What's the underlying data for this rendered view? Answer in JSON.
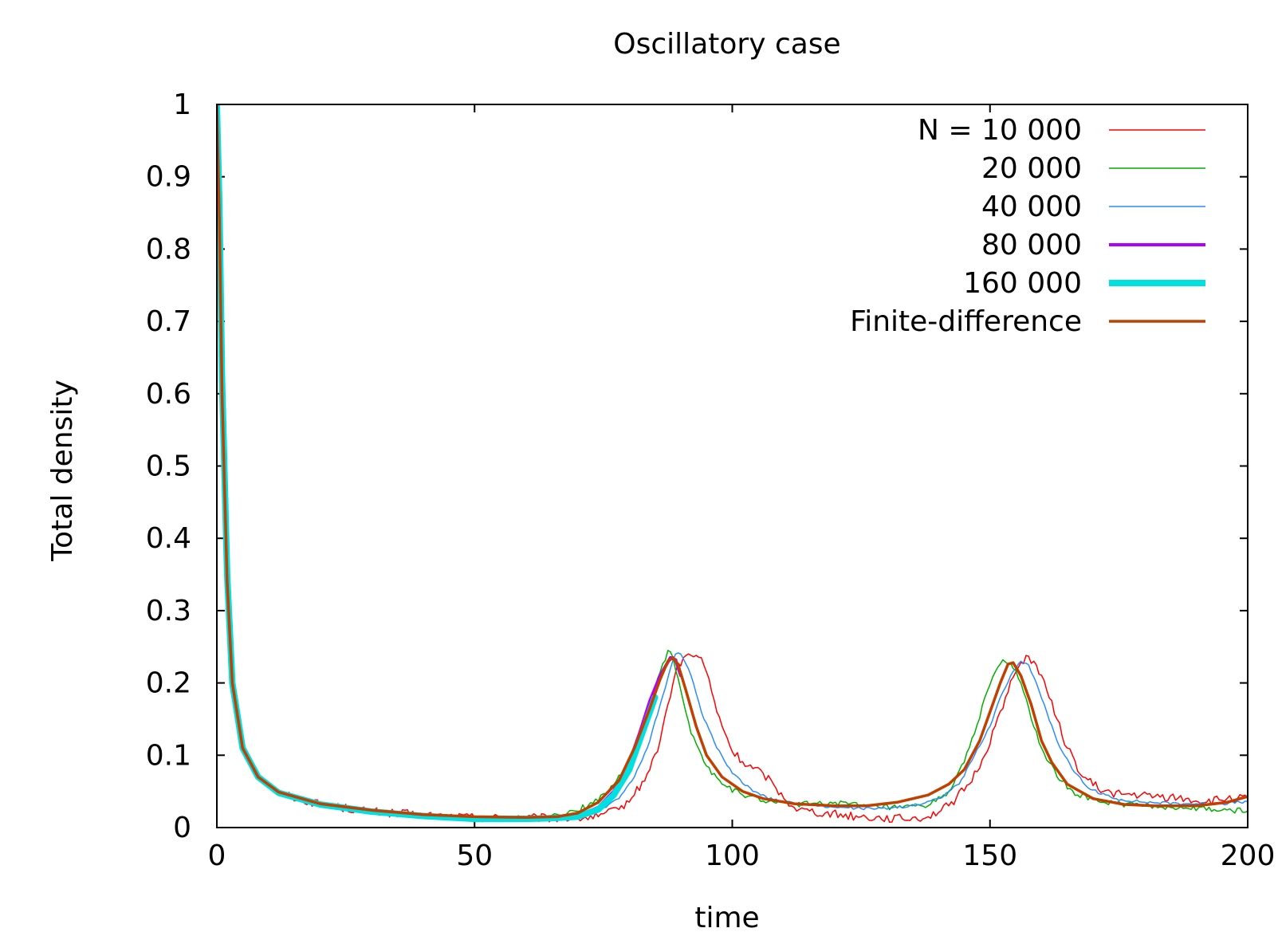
{
  "chart_data": {
    "type": "line",
    "title": "Oscillatory case",
    "xlabel": "time",
    "ylabel": "Total density",
    "xlim": [
      0,
      200
    ],
    "ylim": [
      0,
      1
    ],
    "xticks": [
      "0",
      "50",
      "100",
      "150",
      "200"
    ],
    "yticks": [
      "0",
      "0.1",
      "0.2",
      "0.3",
      "0.4",
      "0.5",
      "0.6",
      "0.7",
      "0.8",
      "0.9",
      "1"
    ],
    "grid": false,
    "legend_position": "top-right",
    "series": [
      {
        "name": "N = 10 000",
        "color": "#ff0000",
        "width": 1.5,
        "noise": 0.006,
        "points": [
          [
            0,
            1.0
          ],
          [
            0.5,
            0.85
          ],
          [
            1,
            0.62
          ],
          [
            2,
            0.35
          ],
          [
            3,
            0.2
          ],
          [
            5,
            0.11
          ],
          [
            8,
            0.07
          ],
          [
            12,
            0.048
          ],
          [
            20,
            0.032
          ],
          [
            30,
            0.022
          ],
          [
            40,
            0.017
          ],
          [
            50,
            0.014
          ],
          [
            60,
            0.013
          ],
          [
            65,
            0.013
          ],
          [
            70,
            0.013
          ],
          [
            74,
            0.015
          ],
          [
            78,
            0.025
          ],
          [
            81,
            0.045
          ],
          [
            84,
            0.08
          ],
          [
            86,
            0.12
          ],
          [
            87.5,
            0.17
          ],
          [
            89,
            0.215
          ],
          [
            90.5,
            0.235
          ],
          [
            92,
            0.238
          ],
          [
            94,
            0.235
          ],
          [
            95,
            0.215
          ],
          [
            97,
            0.16
          ],
          [
            100,
            0.105
          ],
          [
            103,
            0.085
          ],
          [
            106,
            0.075
          ],
          [
            108,
            0.06
          ],
          [
            110,
            0.04
          ],
          [
            113,
            0.025
          ],
          [
            118,
            0.02
          ],
          [
            125,
            0.015
          ],
          [
            133,
            0.012
          ],
          [
            138,
            0.015
          ],
          [
            142,
            0.03
          ],
          [
            146,
            0.06
          ],
          [
            149,
            0.1
          ],
          [
            151,
            0.14
          ],
          [
            153,
            0.18
          ],
          [
            155,
            0.215
          ],
          [
            157,
            0.238
          ],
          [
            159,
            0.225
          ],
          [
            161,
            0.19
          ],
          [
            163,
            0.15
          ],
          [
            165,
            0.11
          ],
          [
            168,
            0.07
          ],
          [
            172,
            0.05
          ],
          [
            176,
            0.046
          ],
          [
            182,
            0.043
          ],
          [
            188,
            0.04
          ],
          [
            192,
            0.035
          ],
          [
            196,
            0.04
          ],
          [
            200,
            0.04
          ]
        ]
      },
      {
        "name": "20 000",
        "color": "#00b000",
        "width": 1.5,
        "noise": 0.004,
        "points": [
          [
            0,
            1.0
          ],
          [
            0.5,
            0.86
          ],
          [
            1,
            0.62
          ],
          [
            2,
            0.35
          ],
          [
            3,
            0.2
          ],
          [
            5,
            0.11
          ],
          [
            8,
            0.07
          ],
          [
            12,
            0.048
          ],
          [
            20,
            0.032
          ],
          [
            30,
            0.022
          ],
          [
            40,
            0.016
          ],
          [
            50,
            0.013
          ],
          [
            60,
            0.013
          ],
          [
            64,
            0.014
          ],
          [
            68,
            0.02
          ],
          [
            72,
            0.03
          ],
          [
            76,
            0.05
          ],
          [
            79,
            0.08
          ],
          [
            82,
            0.12
          ],
          [
            84,
            0.17
          ],
          [
            86,
            0.215
          ],
          [
            87.5,
            0.245
          ],
          [
            88.5,
            0.235
          ],
          [
            90,
            0.19
          ],
          [
            92,
            0.13
          ],
          [
            95,
            0.085
          ],
          [
            98,
            0.06
          ],
          [
            102,
            0.045
          ],
          [
            107,
            0.036
          ],
          [
            112,
            0.032
          ],
          [
            120,
            0.035
          ],
          [
            125,
            0.03
          ],
          [
            132,
            0.027
          ],
          [
            138,
            0.03
          ],
          [
            142,
            0.05
          ],
          [
            145,
            0.09
          ],
          [
            147,
            0.13
          ],
          [
            149,
            0.18
          ],
          [
            151,
            0.215
          ],
          [
            152.5,
            0.232
          ],
          [
            154,
            0.228
          ],
          [
            156,
            0.2
          ],
          [
            158,
            0.15
          ],
          [
            160,
            0.11
          ],
          [
            163,
            0.07
          ],
          [
            167,
            0.045
          ],
          [
            172,
            0.035
          ],
          [
            180,
            0.03
          ],
          [
            188,
            0.027
          ],
          [
            195,
            0.024
          ],
          [
            200,
            0.023
          ]
        ]
      },
      {
        "name": "40 000",
        "color": "#2a8cff",
        "width": 1.5,
        "noise": 0.002,
        "points": [
          [
            0,
            1.0
          ],
          [
            0.5,
            0.86
          ],
          [
            1,
            0.62
          ],
          [
            2,
            0.35
          ],
          [
            3,
            0.2
          ],
          [
            5,
            0.11
          ],
          [
            8,
            0.07
          ],
          [
            12,
            0.048
          ],
          [
            20,
            0.032
          ],
          [
            30,
            0.022
          ],
          [
            40,
            0.016
          ],
          [
            50,
            0.013
          ],
          [
            60,
            0.013
          ],
          [
            65,
            0.013
          ],
          [
            70,
            0.015
          ],
          [
            74,
            0.022
          ],
          [
            78,
            0.04
          ],
          [
            81,
            0.07
          ],
          [
            84,
            0.12
          ],
          [
            86,
            0.17
          ],
          [
            88,
            0.22
          ],
          [
            89,
            0.24
          ],
          [
            90,
            0.24
          ],
          [
            92,
            0.21
          ],
          [
            94,
            0.16
          ],
          [
            97,
            0.11
          ],
          [
            100,
            0.075
          ],
          [
            104,
            0.05
          ],
          [
            108,
            0.038
          ],
          [
            114,
            0.032
          ],
          [
            120,
            0.028
          ],
          [
            128,
            0.026
          ],
          [
            135,
            0.03
          ],
          [
            140,
            0.04
          ],
          [
            144,
            0.06
          ],
          [
            147,
            0.1
          ],
          [
            150,
            0.14
          ],
          [
            152,
            0.18
          ],
          [
            154,
            0.21
          ],
          [
            156,
            0.23
          ],
          [
            157.5,
            0.225
          ],
          [
            159,
            0.2
          ],
          [
            161,
            0.16
          ],
          [
            163,
            0.12
          ],
          [
            166,
            0.08
          ],
          [
            169,
            0.055
          ],
          [
            174,
            0.04
          ],
          [
            180,
            0.035
          ],
          [
            188,
            0.033
          ],
          [
            195,
            0.033
          ],
          [
            200,
            0.036
          ]
        ]
      },
      {
        "name": "80 000",
        "color": "#b000ff",
        "width": 4,
        "noise": 0,
        "points": [
          [
            0,
            1.0
          ],
          [
            0.5,
            0.86
          ],
          [
            1,
            0.62
          ],
          [
            2,
            0.35
          ],
          [
            3,
            0.2
          ],
          [
            5,
            0.11
          ],
          [
            8,
            0.07
          ],
          [
            12,
            0.048
          ],
          [
            20,
            0.032
          ],
          [
            30,
            0.022
          ],
          [
            40,
            0.016
          ],
          [
            50,
            0.013
          ],
          [
            60,
            0.013
          ],
          [
            65,
            0.013
          ],
          [
            70,
            0.016
          ],
          [
            74,
            0.028
          ],
          [
            77,
            0.05
          ],
          [
            80,
            0.09
          ],
          [
            82,
            0.13
          ],
          [
            84,
            0.175
          ],
          [
            86,
            0.21
          ],
          [
            88,
            0.235
          ],
          [
            89,
            0.232
          ],
          [
            90,
            0.21
          ]
        ]
      },
      {
        "name": "160 000",
        "color": "#00e0e0",
        "width": 8,
        "noise": 0,
        "points": [
          [
            0,
            1.0
          ],
          [
            0.5,
            0.86
          ],
          [
            1,
            0.62
          ],
          [
            2,
            0.35
          ],
          [
            3,
            0.2
          ],
          [
            5,
            0.11
          ],
          [
            8,
            0.07
          ],
          [
            12,
            0.048
          ],
          [
            20,
            0.032
          ],
          [
            30,
            0.022
          ],
          [
            40,
            0.016
          ],
          [
            50,
            0.012
          ],
          [
            60,
            0.012
          ],
          [
            65,
            0.013
          ],
          [
            70,
            0.015
          ],
          [
            74,
            0.025
          ],
          [
            77,
            0.045
          ],
          [
            80,
            0.08
          ],
          [
            82,
            0.12
          ],
          [
            84,
            0.16
          ],
          [
            85,
            0.18
          ]
        ]
      },
      {
        "name": "Finite-difference",
        "color": "#c04000",
        "width": 3.5,
        "noise": 0,
        "points": [
          [
            0,
            1.0
          ],
          [
            0.5,
            0.84
          ],
          [
            1,
            0.6
          ],
          [
            2,
            0.34
          ],
          [
            3,
            0.2
          ],
          [
            5,
            0.11
          ],
          [
            8,
            0.07
          ],
          [
            12,
            0.049
          ],
          [
            20,
            0.033
          ],
          [
            30,
            0.024
          ],
          [
            40,
            0.018
          ],
          [
            50,
            0.015
          ],
          [
            60,
            0.014
          ],
          [
            66,
            0.015
          ],
          [
            70,
            0.02
          ],
          [
            74,
            0.035
          ],
          [
            78,
            0.065
          ],
          [
            81,
            0.11
          ],
          [
            84,
            0.165
          ],
          [
            86,
            0.205
          ],
          [
            87.5,
            0.23
          ],
          [
            88.5,
            0.235
          ],
          [
            89.5,
            0.225
          ],
          [
            91,
            0.19
          ],
          [
            93,
            0.14
          ],
          [
            95,
            0.1
          ],
          [
            98,
            0.07
          ],
          [
            102,
            0.05
          ],
          [
            106,
            0.04
          ],
          [
            112,
            0.033
          ],
          [
            120,
            0.03
          ],
          [
            126,
            0.03
          ],
          [
            132,
            0.035
          ],
          [
            138,
            0.045
          ],
          [
            142,
            0.06
          ],
          [
            145,
            0.08
          ],
          [
            148,
            0.12
          ],
          [
            150,
            0.16
          ],
          [
            152,
            0.2
          ],
          [
            153.5,
            0.226
          ],
          [
            154.5,
            0.228
          ],
          [
            156,
            0.21
          ],
          [
            158,
            0.17
          ],
          [
            160,
            0.12
          ],
          [
            162,
            0.09
          ],
          [
            165,
            0.06
          ],
          [
            170,
            0.04
          ],
          [
            176,
            0.032
          ],
          [
            182,
            0.03
          ],
          [
            190,
            0.03
          ],
          [
            196,
            0.035
          ],
          [
            200,
            0.043
          ]
        ]
      }
    ]
  }
}
